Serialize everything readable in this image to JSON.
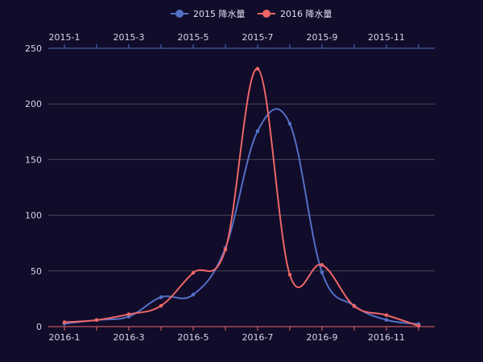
{
  "chart_data": {
    "type": "line",
    "smooth": true,
    "background": "#100c2a",
    "grid": true,
    "legend_placement": "top-center",
    "legend": [
      {
        "name": "2015 降水量",
        "color": "#5470c6"
      },
      {
        "name": "2016 降水量",
        "color": "#ee6666"
      }
    ],
    "x_top": {
      "categories": [
        "2015-1",
        "2015-2",
        "2015-3",
        "2015-4",
        "2015-5",
        "2015-6",
        "2015-7",
        "2015-8",
        "2015-9",
        "2015-10",
        "2015-11",
        "2015-12"
      ],
      "tick_labels": [
        "2015-1",
        "2015-3",
        "2015-5",
        "2015-7",
        "2015-9",
        "2015-11"
      ],
      "color": "#5470c6"
    },
    "x_bottom": {
      "categories": [
        "2016-1",
        "2016-2",
        "2016-3",
        "2016-4",
        "2016-5",
        "2016-6",
        "2016-7",
        "2016-8",
        "2016-9",
        "2016-10",
        "2016-11",
        "2016-12"
      ],
      "tick_labels": [
        "2016-1",
        "2016-3",
        "2016-5",
        "2016-7",
        "2016-9",
        "2016-11"
      ],
      "color": "#ee6666"
    },
    "y": {
      "ylim": [
        0,
        250
      ],
      "ticks": [
        0,
        50,
        100,
        150,
        200,
        250
      ]
    },
    "series": [
      {
        "name": "2015 降水量",
        "axis": "top",
        "color": "#5470c6",
        "values": [
          2.6,
          5.9,
          9.0,
          26.4,
          28.7,
          70.7,
          175.6,
          182.2,
          48.7,
          18.8,
          6.0,
          2.3
        ]
      },
      {
        "name": "2016 降水量",
        "axis": "bottom",
        "color": "#ee6666",
        "values": [
          3.9,
          5.9,
          11.1,
          18.7,
          48.3,
          69.2,
          231.6,
          46.6,
          55.4,
          18.4,
          10.3,
          0.7
        ]
      }
    ]
  }
}
